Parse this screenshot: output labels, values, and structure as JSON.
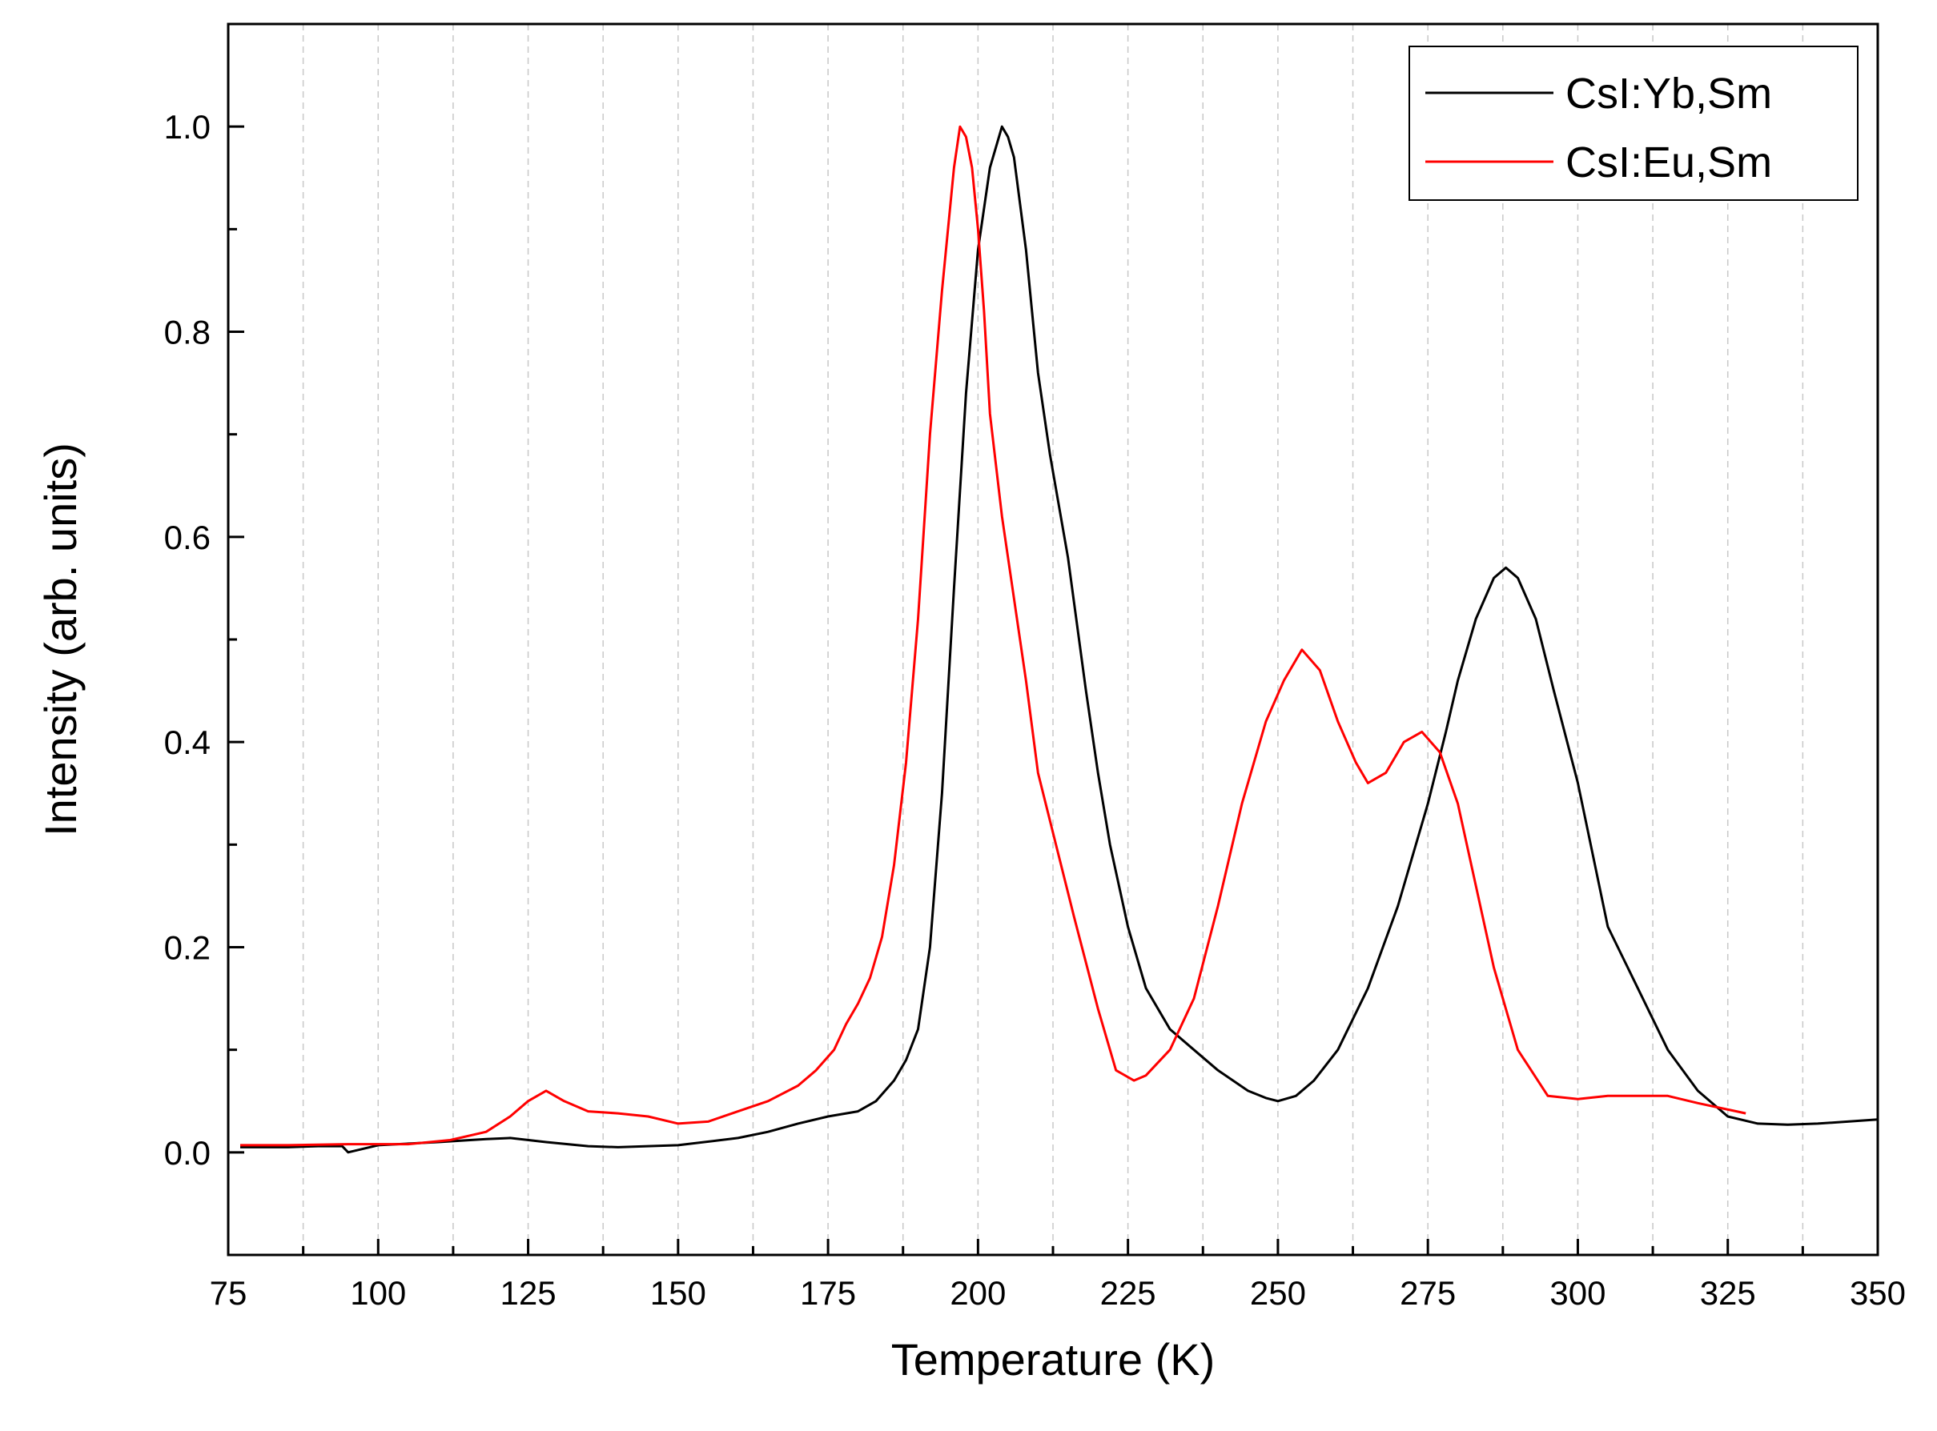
{
  "chart_data": {
    "type": "line",
    "title": "",
    "xlabel": "Temperature (K)",
    "ylabel": "Intensity (arb. units)",
    "xlim": [
      75,
      350
    ],
    "ylim": [
      -0.1,
      1.1
    ],
    "x_ticks": [
      75,
      100,
      125,
      150,
      175,
      200,
      225,
      250,
      275,
      300,
      325,
      350
    ],
    "x_tick_labels": [
      "75",
      "100",
      "125",
      "150",
      "175",
      "200",
      "225",
      "250",
      "275",
      "300",
      "325",
      "350"
    ],
    "y_ticks": [
      0.0,
      0.2,
      0.4,
      0.6,
      0.8,
      1.0
    ],
    "y_tick_labels": [
      "0.0",
      "0.2",
      "0.4",
      "0.6",
      "0.8",
      "1.0"
    ],
    "grid": "vertical dashed",
    "legend_position": "top-right",
    "series": [
      {
        "name": "CsI:Yb,Sm",
        "color": "#000000",
        "x": [
          77,
          85,
          90,
          94,
          95,
          100,
          110,
          118,
          122,
          128,
          135,
          140,
          150,
          160,
          165,
          170,
          175,
          180,
          183,
          186,
          188,
          190,
          192,
          194,
          196,
          198,
          200,
          202,
          204,
          205,
          206,
          208,
          210,
          212,
          215,
          218,
          220,
          222,
          225,
          228,
          232,
          236,
          240,
          245,
          248,
          250,
          253,
          256,
          260,
          265,
          270,
          275,
          278,
          280,
          283,
          286,
          288,
          290,
          293,
          296,
          300,
          305,
          310,
          315,
          320,
          325,
          330,
          335,
          340,
          345,
          350
        ],
        "y": [
          0.005,
          0.005,
          0.006,
          0.006,
          0.0,
          0.007,
          0.01,
          0.013,
          0.014,
          0.01,
          0.006,
          0.005,
          0.007,
          0.014,
          0.02,
          0.028,
          0.035,
          0.04,
          0.05,
          0.07,
          0.09,
          0.12,
          0.2,
          0.35,
          0.55,
          0.74,
          0.88,
          0.96,
          1.0,
          0.99,
          0.97,
          0.88,
          0.76,
          0.68,
          0.58,
          0.45,
          0.37,
          0.3,
          0.22,
          0.16,
          0.12,
          0.1,
          0.08,
          0.06,
          0.053,
          0.05,
          0.055,
          0.07,
          0.1,
          0.16,
          0.24,
          0.34,
          0.41,
          0.46,
          0.52,
          0.56,
          0.57,
          0.56,
          0.52,
          0.45,
          0.36,
          0.22,
          0.16,
          0.1,
          0.06,
          0.035,
          0.028,
          0.027,
          0.028,
          0.03,
          0.032
        ]
      },
      {
        "name": "CsI:Eu,Sm",
        "color": "#ff0000",
        "x": [
          77,
          85,
          95,
          105,
          112,
          118,
          122,
          125,
          128,
          131,
          135,
          140,
          145,
          150,
          155,
          160,
          165,
          170,
          173,
          176,
          178,
          180,
          182,
          184,
          186,
          188,
          190,
          192,
          194,
          196,
          197,
          198,
          199,
          200,
          201,
          202,
          204,
          206,
          208,
          210,
          213,
          216,
          220,
          223,
          226,
          228,
          232,
          236,
          240,
          244,
          248,
          251,
          254,
          257,
          260,
          263,
          265,
          268,
          271,
          274,
          277,
          280,
          283,
          286,
          290,
          295,
          300,
          305,
          310,
          315,
          320,
          328
        ],
        "y": [
          0.007,
          0.007,
          0.008,
          0.008,
          0.012,
          0.02,
          0.035,
          0.05,
          0.06,
          0.05,
          0.04,
          0.038,
          0.035,
          0.028,
          0.03,
          0.04,
          0.05,
          0.065,
          0.08,
          0.1,
          0.125,
          0.145,
          0.17,
          0.21,
          0.28,
          0.38,
          0.52,
          0.7,
          0.84,
          0.96,
          1.0,
          0.99,
          0.96,
          0.9,
          0.82,
          0.72,
          0.62,
          0.54,
          0.46,
          0.37,
          0.3,
          0.23,
          0.14,
          0.08,
          0.07,
          0.075,
          0.1,
          0.15,
          0.24,
          0.34,
          0.42,
          0.46,
          0.49,
          0.47,
          0.42,
          0.38,
          0.36,
          0.37,
          0.4,
          0.41,
          0.39,
          0.34,
          0.26,
          0.18,
          0.1,
          0.055,
          0.052,
          0.055,
          0.055,
          0.055,
          0.048,
          0.038
        ]
      }
    ]
  }
}
